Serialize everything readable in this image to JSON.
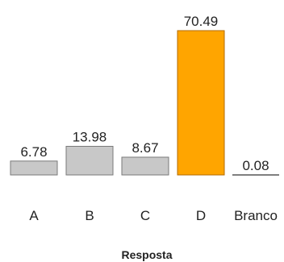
{
  "chart_data": {
    "type": "bar",
    "categories": [
      "A",
      "B",
      "C",
      "D",
      "Branco"
    ],
    "values": [
      6.78,
      13.98,
      8.67,
      70.49,
      0.08
    ],
    "value_labels": [
      "6.78",
      "13.98",
      "8.67",
      "70.49",
      "0.08"
    ],
    "xlabel": "Resposta",
    "ylabel": "",
    "ylim": [
      0,
      70.49
    ],
    "grid": false,
    "colors": {
      "default_fill": "#c8c8c8",
      "default_stroke": "#7a7a7a",
      "highlight_fill": "#ffa500",
      "highlight_stroke": "#b36b00",
      "highlight_category": "D"
    }
  }
}
